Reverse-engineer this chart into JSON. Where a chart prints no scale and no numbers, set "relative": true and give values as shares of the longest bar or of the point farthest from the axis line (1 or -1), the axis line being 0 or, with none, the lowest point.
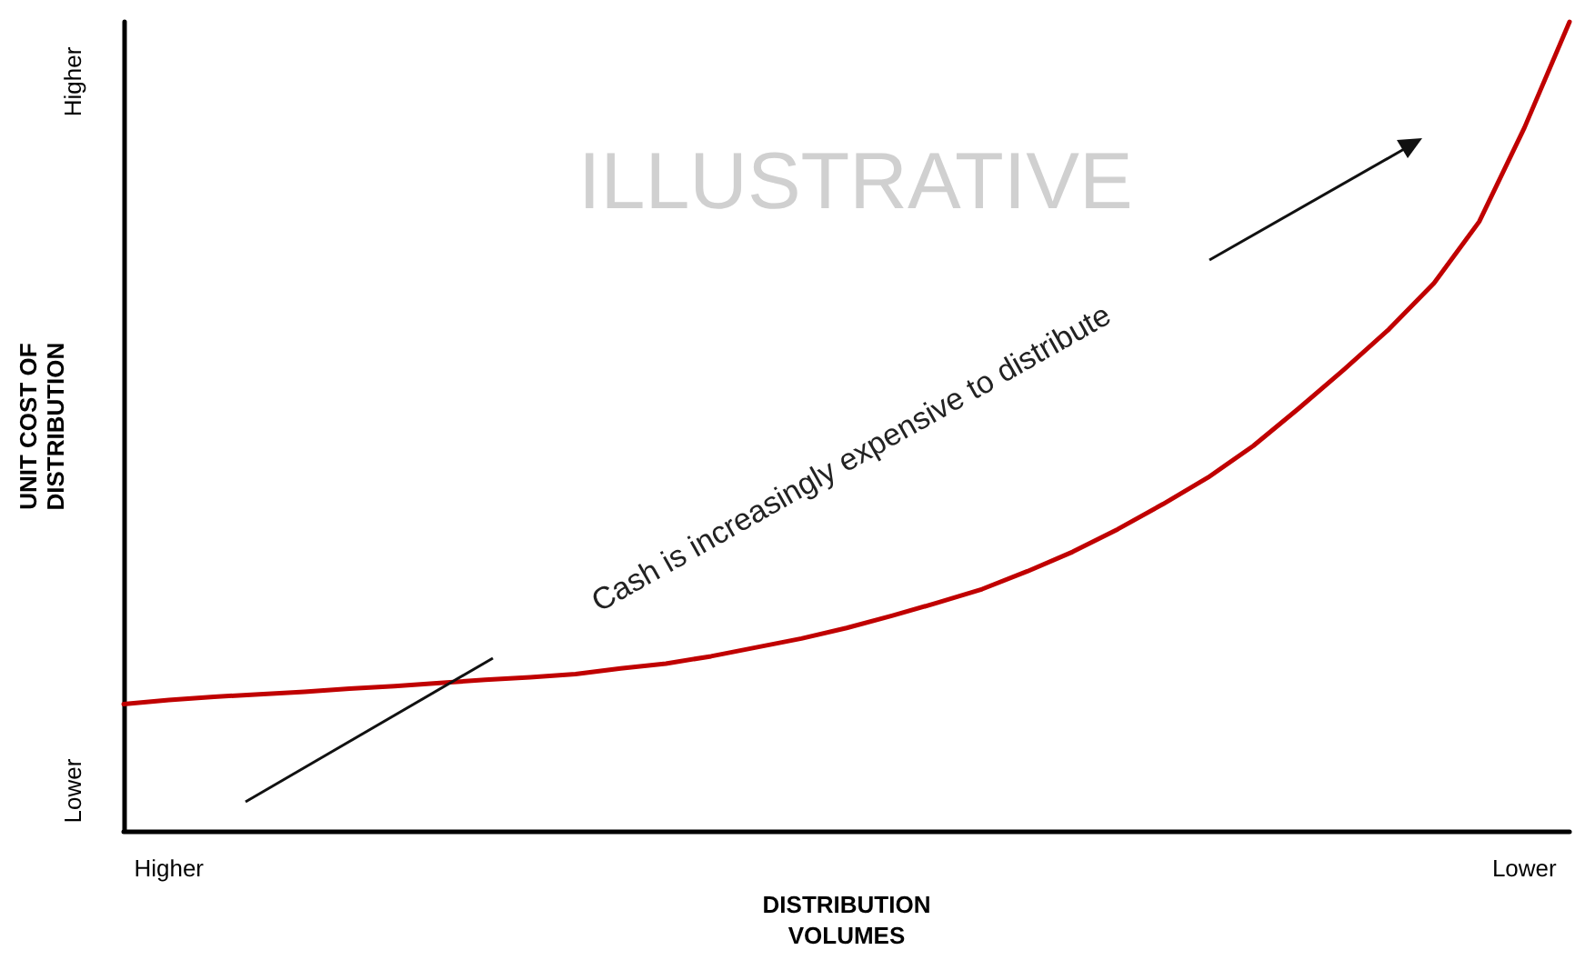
{
  "chart_data": {
    "type": "line",
    "xlabel": "DISTRIBUTION VOLUMES",
    "ylabel": "UNIT COST OF DISTRIBUTION",
    "relative": true,
    "categories": [
      null,
      "Higher",
      null,
      null,
      null,
      null,
      null,
      null,
      null,
      null,
      null,
      null,
      null,
      null,
      null,
      null,
      null,
      null,
      null,
      null,
      null,
      null,
      null,
      null,
      null,
      null,
      null,
      null,
      null,
      null,
      null,
      "Lower",
      null
    ],
    "series": [
      {
        "color": "#c00000",
        "values": [
          0.157,
          0.162,
          0.166,
          0.169,
          0.172,
          0.176,
          0.179,
          0.183,
          0.187,
          0.19,
          0.194,
          0.201,
          0.207,
          0.216,
          0.227,
          0.238,
          0.251,
          0.266,
          0.282,
          0.299,
          0.321,
          0.345,
          0.373,
          0.404,
          0.437,
          0.476,
          0.522,
          0.57,
          0.62,
          0.677,
          0.753,
          0.869,
          1.0
        ]
      }
    ],
    "annotations": [
      "ILLUSTRATIVE",
      "Cash is increasingly expensive to distribute",
      "Higher",
      "Lower"
    ],
    "grid": false,
    "marker": "none",
    "line_style": "solid"
  }
}
